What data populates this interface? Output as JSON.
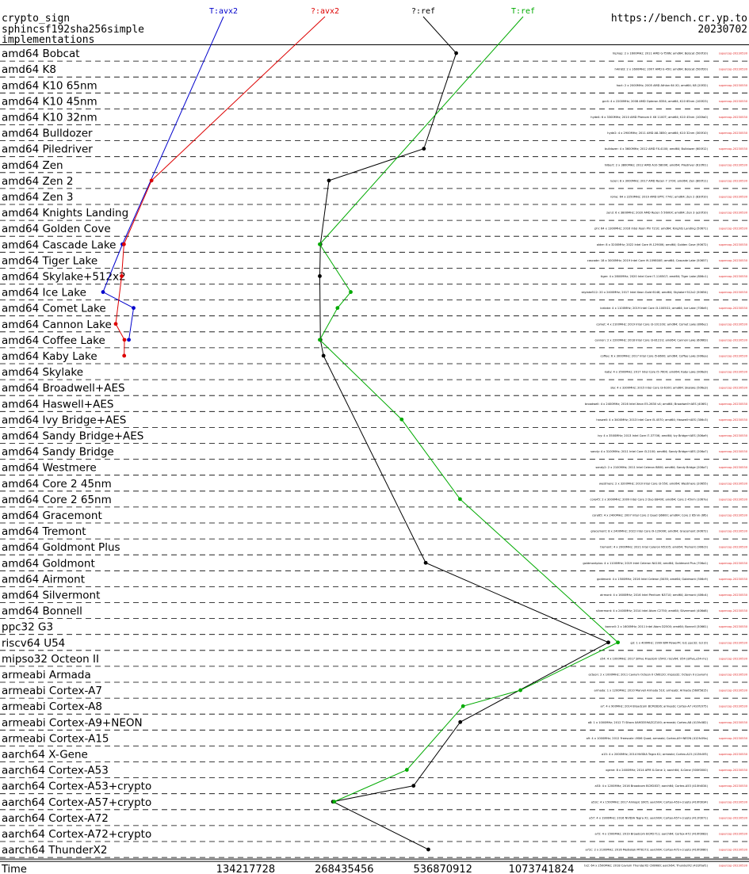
{
  "header": {
    "line1": "crypto_sign",
    "line2": "sphincsf192sha256simple",
    "line3": "implementations",
    "url": "https://bench.cr.yp.to",
    "date": "20230702"
  },
  "chart_data": {
    "type": "line",
    "xscale": "log2",
    "xlim": [
      29000000,
      3600000000
    ],
    "xlabel": "Time",
    "xticks": [
      "134217728",
      "268435456",
      "536870912",
      "1073741824"
    ],
    "xtick_values": [
      134217728,
      268435456,
      536870912,
      1073741824
    ],
    "categories": [
      "amd64 Bobcat",
      "amd64 K8",
      "amd64 K10 65nm",
      "amd64 K10 45nm",
      "amd64 K10 32nm",
      "amd64 Bulldozer",
      "amd64 Piledriver",
      "amd64 Zen",
      "amd64 Zen 2",
      "amd64 Zen 3",
      "amd64 Knights Landing",
      "amd64 Golden Cove",
      "amd64 Cascade Lake",
      "amd64 Tiger Lake",
      "amd64 Skylake+512x2",
      "amd64 Ice Lake",
      "amd64 Comet Lake",
      "amd64 Cannon Lake",
      "amd64 Coffee Lake",
      "amd64 Kaby Lake",
      "amd64 Skylake",
      "amd64 Broadwell+AES",
      "amd64 Haswell+AES",
      "amd64 Ivy Bridge+AES",
      "amd64 Sandy Bridge+AES",
      "amd64 Sandy Bridge",
      "amd64 Westmere",
      "amd64 Core 2 45nm",
      "amd64 Core 2 65nm",
      "amd64 Gracemont",
      "amd64 Tremont",
      "amd64 Goldmont Plus",
      "amd64 Goldmont",
      "amd64 Airmont",
      "amd64 Silvermont",
      "amd64 Bonnell",
      "ppc32 G3",
      "riscv64 U54",
      "mipso32 Octeon II",
      "armeabi Armada",
      "armeabi Cortex-A7",
      "armeabi Cortex-A8",
      "armeabi Cortex-A9+NEON",
      "armeabi Cortex-A15",
      "aarch64 X-Gene",
      "aarch64 Cortex-A53",
      "aarch64 Cortex-A53+crypto",
      "aarch64 Cortex-A57+crypto",
      "aarch64 Cortex-A72",
      "aarch64 Cortex-A72+crypto",
      "aarch64 ThunderX2"
    ],
    "series": [
      {
        "name": "T:avx2",
        "color": "#0000cc",
        "points": [
          {
            "cat": "amd64 Cascade Lake",
            "x": 56400000
          },
          {
            "cat": "amd64 Ice Lake",
            "x": 49200000
          },
          {
            "cat": "amd64 Comet Lake",
            "x": 61000000
          },
          {
            "cat": "amd64 Coffee Lake",
            "x": 59000000
          }
        ]
      },
      {
        "name": "?:avx2",
        "color": "#dd0000",
        "points": [
          {
            "cat": "amd64 Zen 2",
            "x": 69200000
          },
          {
            "cat": "amd64 Cascade Lake",
            "x": 57000000
          },
          {
            "cat": "amd64 Skylake+512x2",
            "x": 56100000
          },
          {
            "cat": "amd64 Cannon Lake",
            "x": 53800000
          },
          {
            "cat": "amd64 Coffee Lake",
            "x": 57200000
          },
          {
            "cat": "amd64 Kaby Lake",
            "x": 57100000
          }
        ]
      },
      {
        "name": "?:ref",
        "color": "#000000",
        "points": [
          {
            "cat": "amd64 Bobcat",
            "x": 590000000
          },
          {
            "cat": "amd64 Piledriver",
            "x": 470000000
          },
          {
            "cat": "amd64 Zen 2",
            "x": 241000000
          },
          {
            "cat": "amd64 Cascade Lake",
            "x": 227000000
          },
          {
            "cat": "amd64 Skylake+512x2",
            "x": 226000000
          },
          {
            "cat": "amd64 Coffee Lake",
            "x": 227000000
          },
          {
            "cat": "amd64 Kaby Lake",
            "x": 232000000
          },
          {
            "cat": "amd64 Goldmont",
            "x": 476000000
          },
          {
            "cat": "riscv64 U54",
            "x": 1720000000
          },
          {
            "cat": "armeabi Cortex-A9+NEON",
            "x": 607000000
          },
          {
            "cat": "aarch64 Cortex-A53+crypto",
            "x": 437000000
          },
          {
            "cat": "aarch64 Cortex-A57+crypto",
            "x": 248000000
          },
          {
            "cat": "aarch64 ThunderX2",
            "x": 485000000
          }
        ]
      },
      {
        "name": "T:ref",
        "color": "#00aa00",
        "points": [
          {
            "cat": "amd64 Cascade Lake",
            "x": 226000000
          },
          {
            "cat": "amd64 Ice Lake",
            "x": 281000000
          },
          {
            "cat": "amd64 Comet Lake",
            "x": 256000000
          },
          {
            "cat": "amd64 Coffee Lake",
            "x": 226000000
          },
          {
            "cat": "amd64 Ivy Bridge+AES",
            "x": 402000000
          },
          {
            "cat": "amd64 Core 2 65nm",
            "x": 606000000
          },
          {
            "cat": "riscv64 U54",
            "x": 1840000000
          },
          {
            "cat": "armeabi Cortex-A7",
            "x": 927000000
          },
          {
            "cat": "armeabi Cortex-A8",
            "x": 619000000
          },
          {
            "cat": "aarch64 Cortex-A53",
            "x": 417000000
          },
          {
            "cat": "aarch64 Cortex-A57+crypto",
            "x": 250000000
          }
        ]
      }
    ],
    "machines": [
      "hiphop: 2 x 1600MHz; 2011 AMD G-T56N; amd64; Bobcat (500f10)",
      "h4m83: 2 x 1600MHz; 2007 AMD E-450; amd64; Bobcat (500f20)",
      "hoct: 2 x 2000MHz; 2005 AMD Athlon 64 X2; amd64; K8 (20f32)",
      "gcr4: 4 x 2200MHz; 2008 AMD Opteron 8354; amd64; K10 65nm (100f23)",
      "hyde4: 6 x 3300MHz; 2010 AMD Phenom II X6 1100T; amd64; K10 45nm (100fa0)",
      "hyde2: 4 x 2900MHz; 2011 AMD A8-3850; amd64; K10 32nm (300f10)",
      "bulldozer: 4 x 3600MHz; 2012 AMD FX-4100; amd64; Bulldozer (600f12)",
      "hilbert: 2 x 3800MHz; 2012 AMD A10-5800K; amd64; Piledriver (610f01)",
      "ryzen: 8 x 3000MHz; 2017 AMD Ryzen 7 1700; amd64; Zen (800f11)",
      "rome: 64 x 2250MHz; 2019 AMD EPYC 7742; amd64; Zen 2 (830f10)",
      "zen3: 6 x 3800MHz; 2020 AMD Ryzen 5 5600X; amd64; Zen 3 (a20f10)",
      "phi: 64 x 1300MHz; 2016 Intel Xeon Phi 7210; amd64; Knights Landing (50671)",
      "alder: 8 x 3200MHz; 2022 Intel Core i9-12900K; amd64; Golden Cove (90672)",
      "cascade: 18 x 3000MHz; 2019 Intel Core i9-10980XE; amd64; Cascade Lake (50657)",
      "tiger: 4 x 2800MHz; 2020 Intel Core i7-1165G7; amd64; Tiger Lake (806c1)",
      "skylake512: 20 x 2400MHz; 2017 Intel Xeon Gold 6148; amd64; Skylake+512x2 (50654)",
      "icelake: 4 x 1100MHz; 2019 Intel Core i3-1005G1; amd64; Ice Lake (706e5)",
      "comet: 4 x 2100MHz; 2019 Intel Core i3-10110U; amd64; Comet Lake (806ec)",
      "cannon: 2 x 2200MHz; 2018 Intel Core i3-8121U; amd64; Cannon Lake (60663)",
      "coffee: 6 x 3000MHz; 2017 Intel Core i5-8600; amd64; Coffee Lake (906ea)",
      "kaby: 4 x 3500MHz; 2017 Intel Core i5-7600; amd64; Kaby Lake (906e9)",
      "sky: 4 x 3300MHz; 2015 Intel Core i3-6100; amd64; Skylake (506e3)",
      "broadwell: 4 x 2400MHz; 2016 Intel Xeon E5-2630 v4; amd64; Broadwell+AES (406f1)",
      "haswell: 4 x 3400MHz; 2013 Intel Core i5-4570; amd64; Haswell+AES (306c3)",
      "ivy: 4 x 3500MHz; 2013 Intel Core i7-3770K; amd64; Ivy Bridge+AES (306a9)",
      "sandy: 4 x 3100MHz; 2011 Intel Core i3-2100; amd64; Sandy Bridge+AES (206a7)",
      "sandy2: 2 x 2100MHz; 2011 Intel Celeron B800; amd64; Sandy Bridge (206a7)",
      "westmere: 2 x 3200MHz; 2010 Intel Core i3-550; amd64; Westmere (20655)",
      "core45: 2 x 3000MHz; 2009 Intel Core 2 Duo E8400; amd64; Core 2 45nm (1067a)",
      "core65: 4 x 2400MHz; 2007 Intel Core 2 Quad Q6600; amd64; Core 2 65nm (6fb)",
      "gracemont: 8 x 2400MHz; 2022 Intel Core i9-12900K; amd64; Gracemont (90672)",
      "tremont: 4 x 2000MHz; 2021 Intel Celeron N5105; amd64; Tremont (906c0)",
      "goldmontplus: 4 x 1100MHz; 2019 Intel Celeron N4100; amd64; Goldmont Plus (706a1)",
      "goldmont: 4 x 1500MHz; 2016 Intel Celeron J3455; amd64; Goldmont (506c9)",
      "airmont: 4 x 1600MHz; 2016 Intel Pentium N3710; amd64; Airmont (406c4)",
      "silvermont: 4 x 2400MHz; 2014 Intel Atom C2750; amd64; Silvermont (406d8)",
      "bonnell: 2 x 1600MHz; 2011 Intel Atom D2500; amd64; Bonnell (30661)",
      "g3: 1 x 400MHz; 1999 IBM PowerPC G3; ppc32; G3 (0)",
      "u54: 4 x 1000MHz; 2017 SiFive Freedom U540; riscv64; U54 (sifive,u54-mc)",
      "octeon: 2 x 1000MHz; 2011 Cavium Octeon II CN6120; mipso32; Octeon II (cavium)",
      "armada: 1 x 1200MHz; 2010 Marvell Armada 510; armeabi; Armada (560f5815)",
      "a7: 4 x 900MHz; 2014 Broadcom BCM2836; armeabi; Cortex-A7 (410fc075)",
      "a8: 1 x 1000MHz; 2012 TI Sitara XAM3359AZCZ100; armeabi; Cortex-A8 (413fc082)",
      "a9: 4 x 1000MHz; 2012 Freescale i.MX6 Quad; armeabi; Cortex-A9+NEON (412fc09a)",
      "a15: 4 x 2000MHz; 2014 NVIDIA Tegra K1; armeabi; Cortex-A15 (413fc0f3)",
      "xgene: 8 x 2400MHz; 2014 APM X-Gene 1; aarch64; X-Gene (500f0000)",
      "a53: 4 x 1200MHz; 2016 Broadcom BCM2837; aarch64; Cortex-A53 (410fd034)",
      "a53c: 4 x 1500MHz; 2017 Amlogic S905; aarch64; Cortex-A53+crypto (410fd034)",
      "a57: 4 x 1900MHz; 2016 NVIDIA Tegra X1; aarch64; Cortex-A57+crypto (411fd071)",
      "a72: 4 x 1500MHz; 2019 Broadcom BCM2711; aarch64; Cortex-A72 (410fd083)",
      "a72c: 2 x 2100MHz; 2016 Mediatek MT8173; aarch64; Cortex-A72+crypto (410fd080)",
      "tx2: 64 x 2500MHz; 2018 Cavium ThunderX2 CN9980; aarch64; ThunderX2 (431f0af1)"
    ],
    "machine_tag": "supercop-20230530",
    "grid": "dashed horizontal separators"
  }
}
